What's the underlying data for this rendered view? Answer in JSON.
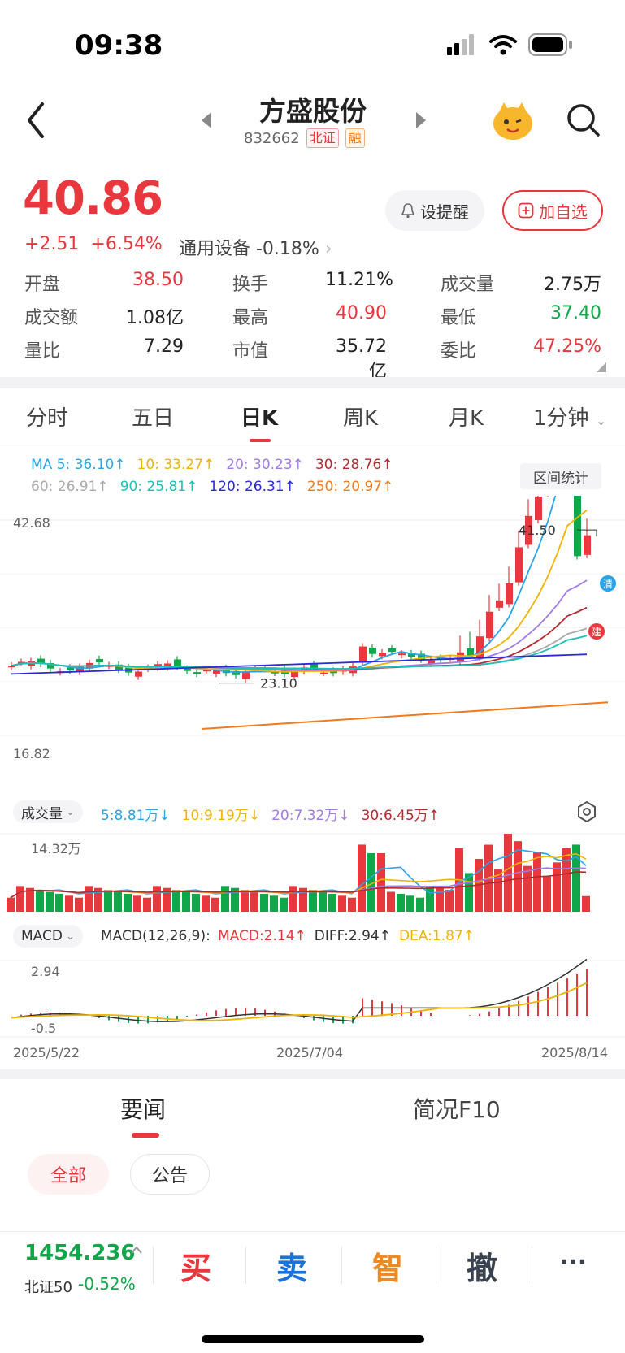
{
  "status_bar": {
    "time": "09:38"
  },
  "header": {
    "title": "方盛股份",
    "code": "832662",
    "tag_exchange": "北证",
    "tag_margin": "融"
  },
  "quote": {
    "price": "40.86",
    "change": "+2.51",
    "change_pct": "+6.54%",
    "sector": "通用设备 -0.18%",
    "alert_label": "设提醒",
    "watch_label": "加自选",
    "fields": [
      {
        "label": "开盘",
        "value": "38.50",
        "color": "red"
      },
      {
        "label": "换手",
        "value": "11.21%",
        "color": "dark"
      },
      {
        "label": "成交量",
        "value": "2.75万",
        "color": "dark"
      },
      {
        "label": "成交额",
        "value": "1.08亿",
        "color": "dark"
      },
      {
        "label": "最高",
        "value": "40.90",
        "color": "red"
      },
      {
        "label": "最低",
        "value": "37.40",
        "color": "green"
      },
      {
        "label": "量比",
        "value": "7.29",
        "color": "dark"
      },
      {
        "label": "市值",
        "value": "35.72亿",
        "color": "dark"
      },
      {
        "label": "委比",
        "value": "47.25%",
        "color": "red"
      }
    ]
  },
  "tabs": [
    "分时",
    "五日",
    "日K",
    "周K",
    "月K",
    "1分钟"
  ],
  "active_tab": "日K",
  "ma_legend": {
    "row1": [
      {
        "text": "MA 5: 36.10↑",
        "color": "#2aa4e8"
      },
      {
        "text": "10: 33.27↑",
        "color": "#f0b400"
      },
      {
        "text": "20: 30.23↑",
        "color": "#a27ae8"
      },
      {
        "text": "30: 28.76↑",
        "color": "#b8282e"
      }
    ],
    "row2": [
      {
        "text": "60: 26.91↑",
        "color": "#aaaaaa"
      },
      {
        "text": "90: 25.81↑",
        "color": "#18c2b8"
      },
      {
        "text": "120: 26.31↑",
        "color": "#2a2ad8"
      },
      {
        "text": "250: 20.97↑",
        "color": "#f07a1e"
      }
    ],
    "stat_button": "区间统计"
  },
  "kline": {
    "y_top": "42.68",
    "y_bottom": "16.82",
    "high_mark": "41.50",
    "low_mark": "23.10",
    "badge_clear": "清",
    "badge_build": "建"
  },
  "volume": {
    "selector": "成交量",
    "legend": [
      {
        "text": "5:8.81万↓",
        "color": "#2aa4e8"
      },
      {
        "text": "10:9.19万↓",
        "color": "#f0b400"
      },
      {
        "text": "20:7.32万↓",
        "color": "#a27ae8"
      },
      {
        "text": "30:6.45万↑",
        "color": "#b8282e"
      }
    ],
    "y_top": "14.32万"
  },
  "macd": {
    "selector": "MACD",
    "params": "MACD(12,26,9):",
    "legend": [
      {
        "text": "MACD:2.14↑",
        "color": "#e8383d"
      },
      {
        "text": "DIFF:2.94↑",
        "color": "#333333"
      },
      {
        "text": "DEA:1.87↑",
        "color": "#f0b400"
      }
    ],
    "y_top": "2.94",
    "y_bottom": "-0.5"
  },
  "dates": [
    "2025/5/22",
    "2025/7/04",
    "2025/8/14"
  ],
  "news": {
    "tabs": [
      "要闻",
      "简况F10"
    ],
    "filters": [
      "全部",
      "公告"
    ]
  },
  "bottom": {
    "index_value": "1454.236",
    "index_name": "北证50",
    "index_change": "-0.52%",
    "actions": [
      {
        "label": "买",
        "color": "#e8383d"
      },
      {
        "label": "卖",
        "color": "#1a73d8"
      },
      {
        "label": "智",
        "color": "#f08a1e"
      },
      {
        "label": "撤",
        "color": "#3a4250"
      }
    ],
    "more": "···"
  }
}
